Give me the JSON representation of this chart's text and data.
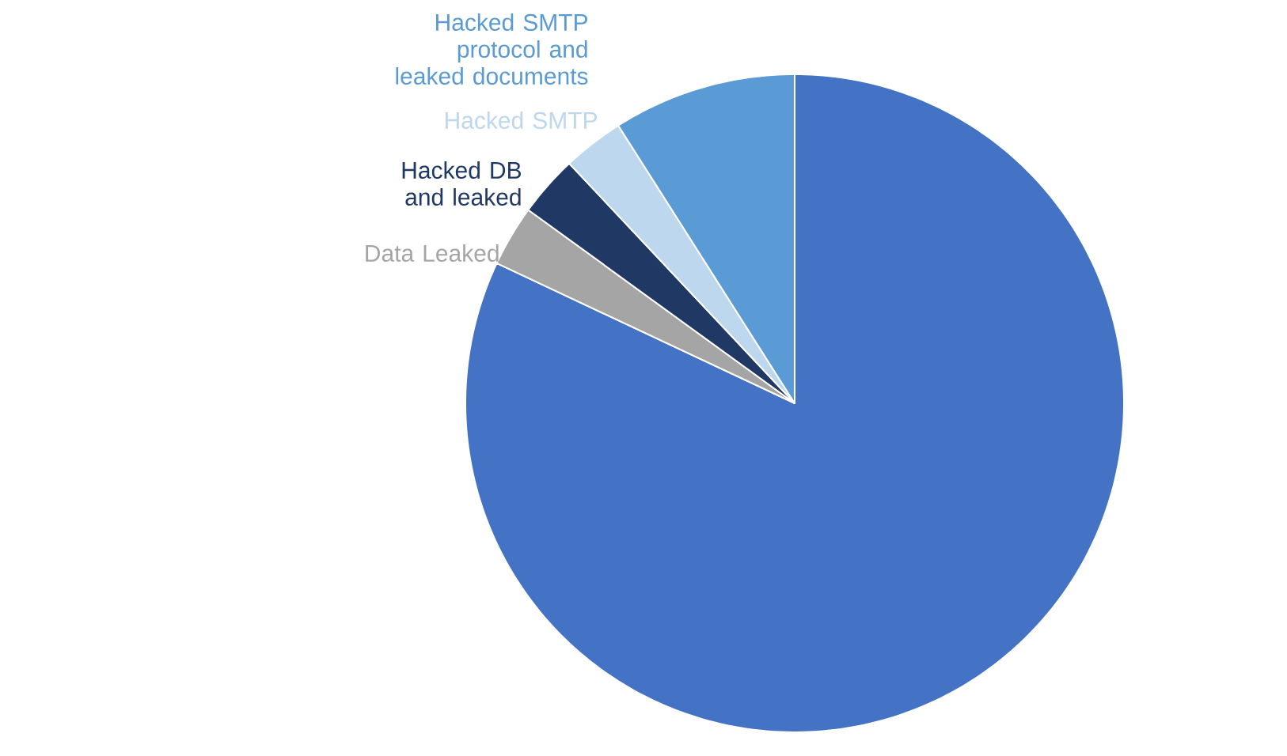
{
  "chart_data": {
    "type": "pie",
    "categories": [
      null,
      "Data Leaked",
      "Hacked DB and leaked",
      "Hacked SMTP",
      "Hacked SMTP protocol and leaked documents"
    ],
    "values": [
      82,
      3,
      3,
      3,
      9
    ],
    "colors": [
      "#4472c4",
      "#a5a5a5",
      "#203864",
      "#bdd7ee",
      "#5b9bd5"
    ]
  }
}
